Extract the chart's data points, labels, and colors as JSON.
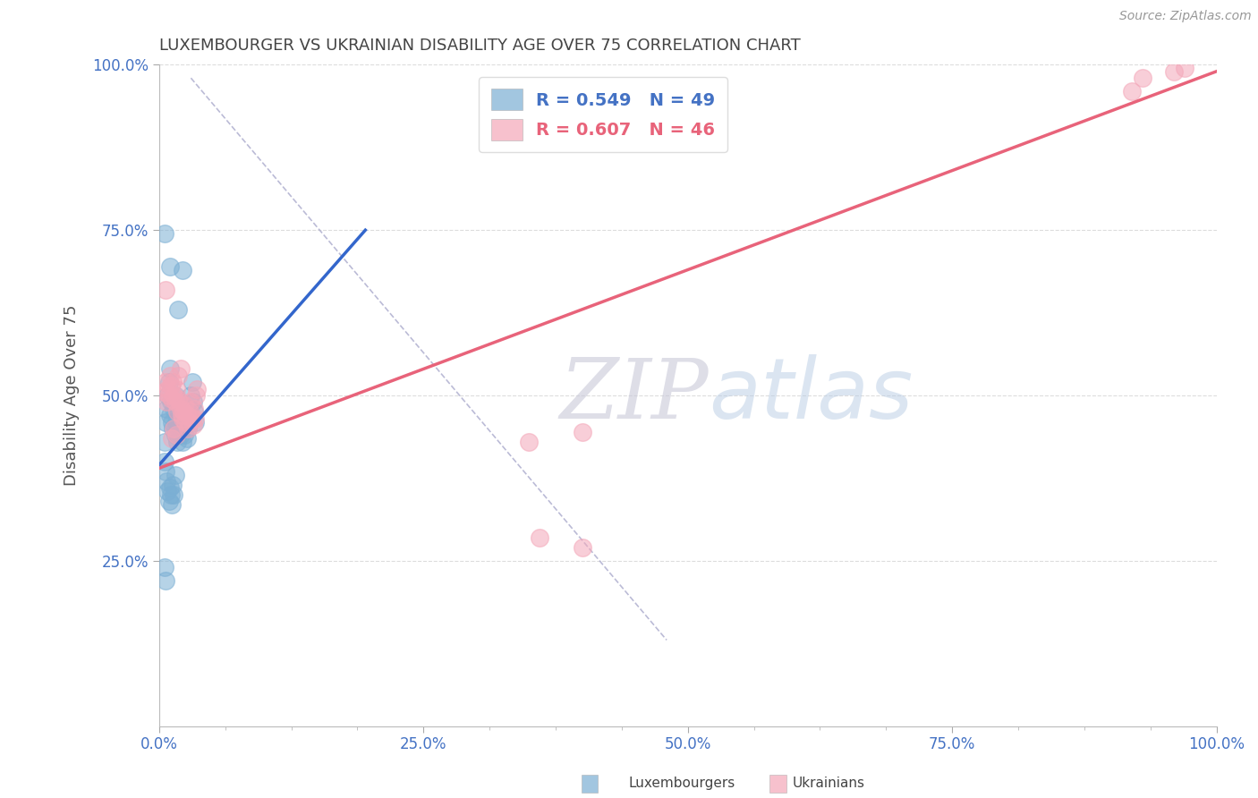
{
  "title": "LUXEMBOURGER VS UKRAINIAN DISABILITY AGE OVER 75 CORRELATION CHART",
  "source": "Source: ZipAtlas.com",
  "ylabel": "Disability Age Over 75",
  "xlim": [
    0.0,
    1.0
  ],
  "ylim": [
    0.0,
    1.0
  ],
  "xtick_labels": [
    "0.0%",
    "",
    "",
    "",
    "25.0%",
    "",
    "",
    "",
    "50.0%",
    "",
    "",
    "",
    "75.0%",
    "",
    "",
    "",
    "100.0%"
  ],
  "xtick_vals": [
    0.0,
    0.0625,
    0.125,
    0.1875,
    0.25,
    0.3125,
    0.375,
    0.4375,
    0.5,
    0.5625,
    0.625,
    0.6875,
    0.75,
    0.8125,
    0.875,
    0.9375,
    1.0
  ],
  "ytick_labels": [
    "25.0%",
    "50.0%",
    "75.0%",
    "100.0%"
  ],
  "ytick_vals": [
    0.25,
    0.5,
    0.75,
    1.0
  ],
  "luxembourger_color": "#7BAFD4",
  "ukrainian_color": "#F4A7B9",
  "luxembourger_line_color": "#3366CC",
  "ukrainian_line_color": "#E8637A",
  "luxembourger_R": 0.549,
  "luxembourger_N": 49,
  "ukrainian_R": 0.607,
  "ukrainian_N": 46,
  "luxembourger_scatter": [
    [
      0.005,
      0.43
    ],
    [
      0.006,
      0.46
    ],
    [
      0.007,
      0.48
    ],
    [
      0.008,
      0.5
    ],
    [
      0.009,
      0.52
    ],
    [
      0.01,
      0.54
    ],
    [
      0.01,
      0.47
    ],
    [
      0.011,
      0.49
    ],
    [
      0.012,
      0.46
    ],
    [
      0.013,
      0.45
    ],
    [
      0.014,
      0.48
    ],
    [
      0.015,
      0.5
    ],
    [
      0.015,
      0.44
    ],
    [
      0.016,
      0.46
    ],
    [
      0.017,
      0.43
    ],
    [
      0.018,
      0.45
    ],
    [
      0.019,
      0.475
    ],
    [
      0.02,
      0.44
    ],
    [
      0.021,
      0.46
    ],
    [
      0.022,
      0.43
    ],
    [
      0.023,
      0.455
    ],
    [
      0.024,
      0.44
    ],
    [
      0.025,
      0.455
    ],
    [
      0.026,
      0.435
    ],
    [
      0.027,
      0.45
    ],
    [
      0.028,
      0.465
    ],
    [
      0.029,
      0.48
    ],
    [
      0.03,
      0.5
    ],
    [
      0.031,
      0.52
    ],
    [
      0.032,
      0.49
    ],
    [
      0.033,
      0.475
    ],
    [
      0.034,
      0.46
    ],
    [
      0.005,
      0.4
    ],
    [
      0.006,
      0.385
    ],
    [
      0.007,
      0.37
    ],
    [
      0.008,
      0.355
    ],
    [
      0.009,
      0.34
    ],
    [
      0.01,
      0.36
    ],
    [
      0.011,
      0.35
    ],
    [
      0.012,
      0.335
    ],
    [
      0.013,
      0.365
    ],
    [
      0.014,
      0.35
    ],
    [
      0.015,
      0.38
    ],
    [
      0.005,
      0.745
    ],
    [
      0.01,
      0.695
    ],
    [
      0.018,
      0.63
    ],
    [
      0.022,
      0.69
    ],
    [
      0.005,
      0.24
    ],
    [
      0.006,
      0.22
    ]
  ],
  "ukrainian_scatter": [
    [
      0.005,
      0.505
    ],
    [
      0.006,
      0.52
    ],
    [
      0.007,
      0.49
    ],
    [
      0.008,
      0.51
    ],
    [
      0.009,
      0.5
    ],
    [
      0.01,
      0.53
    ],
    [
      0.011,
      0.515
    ],
    [
      0.012,
      0.495
    ],
    [
      0.013,
      0.52
    ],
    [
      0.014,
      0.5
    ],
    [
      0.015,
      0.49
    ],
    [
      0.016,
      0.51
    ],
    [
      0.017,
      0.475
    ],
    [
      0.018,
      0.495
    ],
    [
      0.019,
      0.49
    ],
    [
      0.02,
      0.48
    ],
    [
      0.021,
      0.47
    ],
    [
      0.022,
      0.465
    ],
    [
      0.023,
      0.475
    ],
    [
      0.024,
      0.485
    ],
    [
      0.025,
      0.46
    ],
    [
      0.026,
      0.47
    ],
    [
      0.027,
      0.45
    ],
    [
      0.028,
      0.46
    ],
    [
      0.029,
      0.475
    ],
    [
      0.03,
      0.49
    ],
    [
      0.031,
      0.465
    ],
    [
      0.032,
      0.455
    ],
    [
      0.033,
      0.48
    ],
    [
      0.034,
      0.465
    ],
    [
      0.035,
      0.5
    ],
    [
      0.036,
      0.51
    ],
    [
      0.012,
      0.435
    ],
    [
      0.014,
      0.45
    ],
    [
      0.016,
      0.44
    ],
    [
      0.006,
      0.66
    ],
    [
      0.018,
      0.53
    ],
    [
      0.02,
      0.54
    ],
    [
      0.35,
      0.43
    ],
    [
      0.4,
      0.445
    ],
    [
      0.36,
      0.285
    ],
    [
      0.4,
      0.27
    ],
    [
      0.92,
      0.96
    ],
    [
      0.93,
      0.98
    ],
    [
      0.96,
      0.99
    ],
    [
      0.97,
      0.995
    ]
  ],
  "lux_line_x": [
    0.0,
    0.195
  ],
  "lux_line_y": [
    0.395,
    0.75
  ],
  "ukr_line_x": [
    0.0,
    1.0
  ],
  "ukr_line_y": [
    0.39,
    0.99
  ],
  "diag_line_x": [
    0.03,
    0.48
  ],
  "diag_line_y": [
    0.98,
    0.13
  ],
  "watermark_zip": "ZIP",
  "watermark_atlas": "atlas",
  "background_color": "#ffffff",
  "grid_color": "#dddddd",
  "title_fontsize": 13,
  "title_color": "#444444",
  "axis_label_color": "#555555",
  "tick_color": "#4472C4",
  "source_color": "#999999",
  "legend_label_color_lux": "#4472C4",
  "legend_label_color_ukr": "#E8637A"
}
